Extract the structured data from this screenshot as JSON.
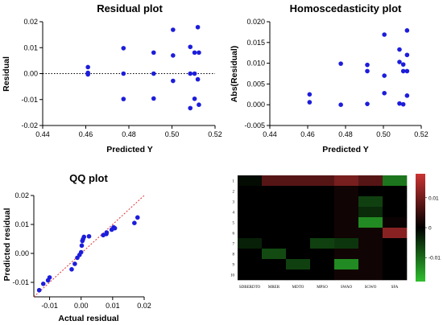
{
  "chart_data": [
    {
      "type": "scatter",
      "title": "Residual plot",
      "xlabel": "Predicted Y",
      "ylabel": "Residual",
      "xlim": [
        0.44,
        0.52
      ],
      "ylim": [
        -0.02,
        0.02
      ],
      "xticks": [
        "0.44",
        "0.46",
        "0.48",
        "0.50",
        "0.52"
      ],
      "yticks": [
        "-0.02",
        "-0.01",
        "0.00",
        "0.01",
        "0.02"
      ],
      "reference_line": {
        "y": 0,
        "style": "dotted",
        "color": "#000000"
      },
      "point_color": "#1d1ddb",
      "points": [
        [
          0.461,
          0.0025
        ],
        [
          0.461,
          0.0003
        ],
        [
          0.461,
          -0.0003
        ],
        [
          0.4775,
          0.0098
        ],
        [
          0.4775,
          0.0
        ],
        [
          0.4775,
          -0.0098
        ],
        [
          0.4915,
          0.0081
        ],
        [
          0.4915,
          0.0
        ],
        [
          0.4915,
          -0.0096
        ],
        [
          0.5005,
          0.0169
        ],
        [
          0.5005,
          0.007
        ],
        [
          0.5005,
          -0.0028
        ],
        [
          0.5085,
          0.0103
        ],
        [
          0.5085,
          0.0
        ],
        [
          0.5085,
          -0.0133
        ],
        [
          0.5105,
          0.0081
        ],
        [
          0.5105,
          0.0
        ],
        [
          0.5105,
          -0.0097
        ],
        [
          0.512,
          0.0179
        ],
        [
          0.5125,
          0.0081
        ],
        [
          0.512,
          -0.0022
        ],
        [
          0.5125,
          -0.012
        ]
      ]
    },
    {
      "type": "scatter",
      "title": "Homoscedasticity plot",
      "xlabel": "Predicted Y",
      "ylabel": "Abs(Residual)",
      "xlim": [
        0.44,
        0.52
      ],
      "ylim": [
        -0.005,
        0.02
      ],
      "xticks": [
        "0.44",
        "0.46",
        "0.48",
        "0.50",
        "0.52"
      ],
      "yticks": [
        "-0.005",
        "0.000",
        "0.005",
        "0.010",
        "0.015",
        "0.020"
      ],
      "point_color": "#1d1ddb",
      "points": [
        [
          0.461,
          0.0025
        ],
        [
          0.461,
          0.0006
        ],
        [
          0.4775,
          0.0099
        ],
        [
          0.4775,
          0.0
        ],
        [
          0.4915,
          0.0096
        ],
        [
          0.4915,
          0.0081
        ],
        [
          0.4915,
          0.0002
        ],
        [
          0.5005,
          0.0169
        ],
        [
          0.5005,
          0.007
        ],
        [
          0.5005,
          0.0028
        ],
        [
          0.5085,
          0.0133
        ],
        [
          0.5085,
          0.0103
        ],
        [
          0.5085,
          0.0003
        ],
        [
          0.5105,
          0.0097
        ],
        [
          0.5105,
          0.0081
        ],
        [
          0.5105,
          0.0001
        ],
        [
          0.5125,
          0.0179
        ],
        [
          0.5125,
          0.012
        ],
        [
          0.5125,
          0.0081
        ],
        [
          0.5125,
          0.0022
        ]
      ]
    },
    {
      "type": "scatter",
      "title": "QQ plot",
      "xlabel": "Actual residual",
      "ylabel": "Predicted residual",
      "xlim": [
        -0.015,
        0.02
      ],
      "ylim": [
        -0.015,
        0.02
      ],
      "xticks": [
        "-0.01",
        "0.00",
        "0.01",
        "0.02"
      ],
      "yticks": [
        "-0.01",
        "0.00",
        "0.01",
        "0.02"
      ],
      "reference_line": {
        "from": [
          -0.015,
          -0.015
        ],
        "to": [
          0.02,
          0.02
        ],
        "style": "dotted",
        "color": "#e03030"
      },
      "point_color": "#1d1ddb",
      "points": [
        [
          -0.0133,
          -0.0127
        ],
        [
          -0.012,
          -0.0105
        ],
        [
          -0.0105,
          -0.0093
        ],
        [
          -0.01,
          -0.0083
        ],
        [
          -0.003,
          -0.0055
        ],
        [
          -0.002,
          -0.0036
        ],
        [
          -0.0012,
          -0.0015
        ],
        [
          -0.0005,
          -0.0005
        ],
        [
          0.0,
          0.0004
        ],
        [
          0.0002,
          0.0027
        ],
        [
          0.0004,
          0.0043
        ],
        [
          0.0006,
          0.0049
        ],
        [
          0.0009,
          0.0057
        ],
        [
          0.0025,
          0.0059
        ],
        [
          0.007,
          0.0063
        ],
        [
          0.008,
          0.0067
        ],
        [
          0.0081,
          0.0072
        ],
        [
          0.0097,
          0.0082
        ],
        [
          0.0103,
          0.009
        ],
        [
          0.0107,
          0.0087
        ],
        [
          0.0169,
          0.0105
        ],
        [
          0.0179,
          0.0124
        ]
      ]
    },
    {
      "type": "heatmap",
      "title": "",
      "row_labels": [
        "1",
        "2",
        "3",
        "4",
        "5",
        "6",
        "7",
        "8",
        "9",
        "10"
      ],
      "col_labels": [
        "SDBERDTO",
        "MRER",
        "MDTO",
        "MPSO",
        "SWAO",
        "SGWO",
        "SFA"
      ],
      "value_range": [
        -0.018,
        0.018
      ],
      "colorbar_ticks": [
        "0.01",
        "0",
        "-0.01"
      ],
      "colorbar_tick_values": [
        0.01,
        0,
        -0.01
      ],
      "colors": {
        "high": "#cc3333",
        "mid": "#000000",
        "low": "#2fbf2f"
      },
      "values": [
        [
          -0.001,
          0.0075,
          0.0075,
          0.0075,
          0.0105,
          0.0075,
          -0.011
        ],
        [
          0.0,
          0.0,
          0.0,
          0.0,
          0.0015,
          0.0,
          0.0
        ],
        [
          0.0,
          0.0,
          0.0,
          0.0,
          0.0015,
          -0.006,
          0.0
        ],
        [
          0.0,
          0.0,
          0.0,
          0.0,
          0.0015,
          -0.004,
          0.0
        ],
        [
          0.0,
          0.0,
          0.0,
          0.0,
          0.0015,
          -0.013,
          0.001
        ],
        [
          0.0,
          0.0,
          0.0,
          0.0,
          0.0015,
          0.0015,
          0.012
        ],
        [
          -0.003,
          0.0,
          0.0,
          -0.006,
          -0.005,
          0.0015,
          0.0
        ],
        [
          0.0,
          -0.007,
          0.0,
          0.0,
          0.0015,
          0.0015,
          0.0
        ],
        [
          0.0,
          0.0,
          -0.006,
          0.0,
          -0.013,
          0.0015,
          0.0
        ],
        [
          0.0,
          0.0,
          0.0,
          0.0,
          0.0015,
          0.0015,
          0.0
        ]
      ]
    }
  ]
}
